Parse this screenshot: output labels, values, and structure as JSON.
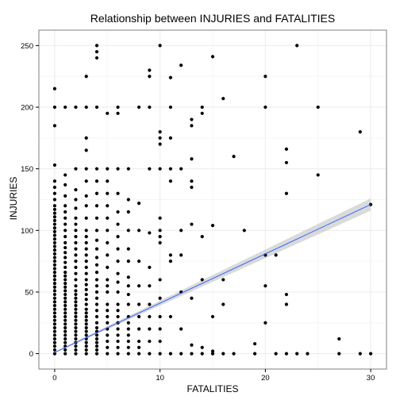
{
  "chart_data": {
    "type": "scatter",
    "title": "Relationship between INJURIES and FATALITIES",
    "xlabel": "FATALITIES",
    "ylabel": "INJURIES",
    "xlim": [
      -1.5,
      31.5
    ],
    "ylim": [
      -12.5,
      262.5
    ],
    "x_ticks": [
      0,
      10,
      20,
      30
    ],
    "y_ticks": [
      0,
      50,
      100,
      150,
      200,
      250
    ],
    "grid": true,
    "legend": "none",
    "colors": {
      "points": "#000000",
      "trend_line": "#3366FF",
      "confidence_band": "#BBBBBB",
      "grid": "#EBEBEB",
      "panel_border": "#7F7F7F"
    },
    "trend_line": {
      "method": "linear",
      "x": [
        0,
        30
      ],
      "y": [
        1,
        121
      ],
      "band_halfwidth": [
        0.5,
        5
      ]
    },
    "points": [
      [
        0,
        0
      ],
      [
        0,
        3
      ],
      [
        0,
        6
      ],
      [
        0,
        9
      ],
      [
        0,
        12
      ],
      [
        0,
        15
      ],
      [
        0,
        18
      ],
      [
        0,
        21
      ],
      [
        0,
        24
      ],
      [
        0,
        27
      ],
      [
        0,
        30
      ],
      [
        0,
        33
      ],
      [
        0,
        36
      ],
      [
        0,
        39
      ],
      [
        0,
        42
      ],
      [
        0,
        45
      ],
      [
        0,
        48
      ],
      [
        0,
        51
      ],
      [
        0,
        54
      ],
      [
        0,
        57
      ],
      [
        0,
        60
      ],
      [
        0,
        63
      ],
      [
        0,
        66
      ],
      [
        0,
        69
      ],
      [
        0,
        72
      ],
      [
        0,
        75
      ],
      [
        0,
        78
      ],
      [
        0,
        81
      ],
      [
        0,
        84
      ],
      [
        0,
        87
      ],
      [
        0,
        90
      ],
      [
        0,
        93
      ],
      [
        0,
        96
      ],
      [
        0,
        99
      ],
      [
        0,
        102
      ],
      [
        0,
        105
      ],
      [
        0,
        108
      ],
      [
        0,
        111
      ],
      [
        0,
        114
      ],
      [
        0,
        117
      ],
      [
        0,
        120
      ],
      [
        0,
        125
      ],
      [
        0,
        130
      ],
      [
        0,
        135
      ],
      [
        0,
        140
      ],
      [
        0,
        153
      ],
      [
        0,
        185
      ],
      [
        0,
        200
      ],
      [
        0,
        215
      ],
      [
        1,
        0
      ],
      [
        1,
        3
      ],
      [
        1,
        6
      ],
      [
        1,
        9
      ],
      [
        1,
        12
      ],
      [
        1,
        15
      ],
      [
        1,
        18
      ],
      [
        1,
        21
      ],
      [
        1,
        24
      ],
      [
        1,
        27
      ],
      [
        1,
        30
      ],
      [
        1,
        33
      ],
      [
        1,
        36
      ],
      [
        1,
        39
      ],
      [
        1,
        42
      ],
      [
        1,
        45
      ],
      [
        1,
        48
      ],
      [
        1,
        51
      ],
      [
        1,
        54
      ],
      [
        1,
        57
      ],
      [
        1,
        60
      ],
      [
        1,
        63
      ],
      [
        1,
        66
      ],
      [
        1,
        70
      ],
      [
        1,
        74
      ],
      [
        1,
        78
      ],
      [
        1,
        82
      ],
      [
        1,
        86
      ],
      [
        1,
        90
      ],
      [
        1,
        95
      ],
      [
        1,
        100
      ],
      [
        1,
        105
      ],
      [
        1,
        110
      ],
      [
        1,
        115
      ],
      [
        1,
        120
      ],
      [
        1,
        128
      ],
      [
        1,
        137
      ],
      [
        1,
        145
      ],
      [
        1,
        200
      ],
      [
        2,
        0
      ],
      [
        2,
        3
      ],
      [
        2,
        6
      ],
      [
        2,
        9
      ],
      [
        2,
        12
      ],
      [
        2,
        15
      ],
      [
        2,
        18
      ],
      [
        2,
        21
      ],
      [
        2,
        24
      ],
      [
        2,
        27
      ],
      [
        2,
        30
      ],
      [
        2,
        33
      ],
      [
        2,
        36
      ],
      [
        2,
        39
      ],
      [
        2,
        42
      ],
      [
        2,
        45
      ],
      [
        2,
        48
      ],
      [
        2,
        51
      ],
      [
        2,
        55
      ],
      [
        2,
        60
      ],
      [
        2,
        65
      ],
      [
        2,
        70
      ],
      [
        2,
        75
      ],
      [
        2,
        80
      ],
      [
        2,
        85
      ],
      [
        2,
        90
      ],
      [
        2,
        95
      ],
      [
        2,
        100
      ],
      [
        2,
        105
      ],
      [
        2,
        110
      ],
      [
        2,
        118
      ],
      [
        2,
        125
      ],
      [
        2,
        133
      ],
      [
        2,
        150
      ],
      [
        2,
        200
      ],
      [
        3,
        0
      ],
      [
        3,
        3
      ],
      [
        3,
        6
      ],
      [
        3,
        9
      ],
      [
        3,
        12
      ],
      [
        3,
        15
      ],
      [
        3,
        18
      ],
      [
        3,
        21
      ],
      [
        3,
        24
      ],
      [
        3,
        27
      ],
      [
        3,
        30
      ],
      [
        3,
        33
      ],
      [
        3,
        36
      ],
      [
        3,
        40
      ],
      [
        3,
        44
      ],
      [
        3,
        48
      ],
      [
        3,
        52
      ],
      [
        3,
        56
      ],
      [
        3,
        60
      ],
      [
        3,
        65
      ],
      [
        3,
        70
      ],
      [
        3,
        75
      ],
      [
        3,
        80
      ],
      [
        3,
        85
      ],
      [
        3,
        90
      ],
      [
        3,
        95
      ],
      [
        3,
        100
      ],
      [
        3,
        110
      ],
      [
        3,
        120
      ],
      [
        3,
        128
      ],
      [
        3,
        140
      ],
      [
        3,
        150
      ],
      [
        3,
        165
      ],
      [
        3,
        175
      ],
      [
        3,
        200
      ],
      [
        3,
        225
      ],
      [
        4,
        0
      ],
      [
        4,
        3
      ],
      [
        4,
        6
      ],
      [
        4,
        9
      ],
      [
        4,
        12
      ],
      [
        4,
        15
      ],
      [
        4,
        18
      ],
      [
        4,
        21
      ],
      [
        4,
        25
      ],
      [
        4,
        30
      ],
      [
        4,
        35
      ],
      [
        4,
        40
      ],
      [
        4,
        45
      ],
      [
        4,
        50
      ],
      [
        4,
        55
      ],
      [
        4,
        60
      ],
      [
        4,
        66
      ],
      [
        4,
        72
      ],
      [
        4,
        78
      ],
      [
        4,
        85
      ],
      [
        4,
        92
      ],
      [
        4,
        100
      ],
      [
        4,
        110
      ],
      [
        4,
        120
      ],
      [
        4,
        130
      ],
      [
        4,
        140
      ],
      [
        4,
        150
      ],
      [
        4,
        200
      ],
      [
        4,
        240
      ],
      [
        4,
        245
      ],
      [
        4,
        250
      ],
      [
        5,
        0
      ],
      [
        5,
        5
      ],
      [
        5,
        10
      ],
      [
        5,
        15
      ],
      [
        5,
        20
      ],
      [
        5,
        25
      ],
      [
        5,
        30
      ],
      [
        5,
        35
      ],
      [
        5,
        40
      ],
      [
        5,
        50
      ],
      [
        5,
        55
      ],
      [
        5,
        60
      ],
      [
        5,
        70
      ],
      [
        5,
        80
      ],
      [
        5,
        90
      ],
      [
        5,
        100
      ],
      [
        5,
        110
      ],
      [
        5,
        120
      ],
      [
        5,
        130
      ],
      [
        5,
        140
      ],
      [
        5,
        150
      ],
      [
        5,
        195
      ],
      [
        6,
        0
      ],
      [
        6,
        5
      ],
      [
        6,
        10
      ],
      [
        6,
        15
      ],
      [
        6,
        20
      ],
      [
        6,
        25
      ],
      [
        6,
        30
      ],
      [
        6,
        35
      ],
      [
        6,
        40
      ],
      [
        6,
        50
      ],
      [
        6,
        58
      ],
      [
        6,
        65
      ],
      [
        6,
        75
      ],
      [
        6,
        85
      ],
      [
        6,
        95
      ],
      [
        6,
        105
      ],
      [
        6,
        115
      ],
      [
        6,
        130
      ],
      [
        6,
        150
      ],
      [
        6,
        195
      ],
      [
        6,
        200
      ],
      [
        7,
        0
      ],
      [
        7,
        5
      ],
      [
        7,
        10
      ],
      [
        7,
        15
      ],
      [
        7,
        20
      ],
      [
        7,
        25
      ],
      [
        7,
        30
      ],
      [
        7,
        40
      ],
      [
        7,
        48
      ],
      [
        7,
        55
      ],
      [
        7,
        62
      ],
      [
        7,
        75
      ],
      [
        7,
        85
      ],
      [
        7,
        100
      ],
      [
        7,
        115
      ],
      [
        7,
        125
      ],
      [
        7,
        150
      ],
      [
        8,
        0
      ],
      [
        8,
        5
      ],
      [
        8,
        10
      ],
      [
        8,
        20
      ],
      [
        8,
        30
      ],
      [
        8,
        40
      ],
      [
        8,
        55
      ],
      [
        8,
        75
      ],
      [
        8,
        100
      ],
      [
        8,
        122
      ],
      [
        8,
        200
      ],
      [
        9,
        0
      ],
      [
        9,
        10
      ],
      [
        9,
        20
      ],
      [
        9,
        30
      ],
      [
        9,
        40
      ],
      [
        9,
        55
      ],
      [
        9,
        70
      ],
      [
        9,
        98
      ],
      [
        9,
        150
      ],
      [
        9,
        200
      ],
      [
        9,
        225
      ],
      [
        9,
        230
      ],
      [
        10,
        0
      ],
      [
        10,
        10
      ],
      [
        10,
        20
      ],
      [
        10,
        30
      ],
      [
        10,
        45
      ],
      [
        10,
        60
      ],
      [
        10,
        90
      ],
      [
        10,
        95
      ],
      [
        10,
        100
      ],
      [
        10,
        110
      ],
      [
        10,
        150
      ],
      [
        10,
        170
      ],
      [
        10,
        175
      ],
      [
        10,
        180
      ],
      [
        10,
        250
      ],
      [
        11,
        0
      ],
      [
        11,
        30
      ],
      [
        11,
        75
      ],
      [
        11,
        80
      ],
      [
        11,
        140
      ],
      [
        11,
        150
      ],
      [
        11,
        175
      ],
      [
        11,
        200
      ],
      [
        11,
        224
      ],
      [
        12,
        0
      ],
      [
        12,
        20
      ],
      [
        12,
        50
      ],
      [
        12,
        80
      ],
      [
        12,
        100
      ],
      [
        12,
        150
      ],
      [
        12,
        234
      ],
      [
        13,
        0
      ],
      [
        13,
        7
      ],
      [
        13,
        45
      ],
      [
        13,
        105
      ],
      [
        13,
        135
      ],
      [
        13,
        140
      ],
      [
        13,
        158
      ],
      [
        13,
        185
      ],
      [
        13,
        190
      ],
      [
        14,
        0
      ],
      [
        14,
        5
      ],
      [
        14,
        60
      ],
      [
        14,
        95
      ],
      [
        14,
        195
      ],
      [
        14,
        200
      ],
      [
        15,
        0
      ],
      [
        15,
        2
      ],
      [
        15,
        30
      ],
      [
        15,
        104
      ],
      [
        15,
        241
      ],
      [
        16,
        0
      ],
      [
        16,
        40
      ],
      [
        16,
        60
      ],
      [
        16,
        207
      ],
      [
        17,
        0
      ],
      [
        17,
        160
      ],
      [
        18,
        100
      ],
      [
        19,
        0
      ],
      [
        19,
        8
      ],
      [
        20,
        25
      ],
      [
        20,
        55
      ],
      [
        20,
        80
      ],
      [
        20,
        200
      ],
      [
        20,
        225
      ],
      [
        21,
        0
      ],
      [
        21,
        80
      ],
      [
        22,
        0
      ],
      [
        22,
        40
      ],
      [
        22,
        48
      ],
      [
        22,
        130
      ],
      [
        22,
        155
      ],
      [
        22,
        166
      ],
      [
        23,
        0
      ],
      [
        23,
        250
      ],
      [
        24,
        0
      ],
      [
        25,
        145
      ],
      [
        25,
        200
      ],
      [
        27,
        0
      ],
      [
        27,
        12
      ],
      [
        29,
        0
      ],
      [
        29,
        180
      ],
      [
        30,
        0
      ],
      [
        30,
        121
      ]
    ]
  }
}
